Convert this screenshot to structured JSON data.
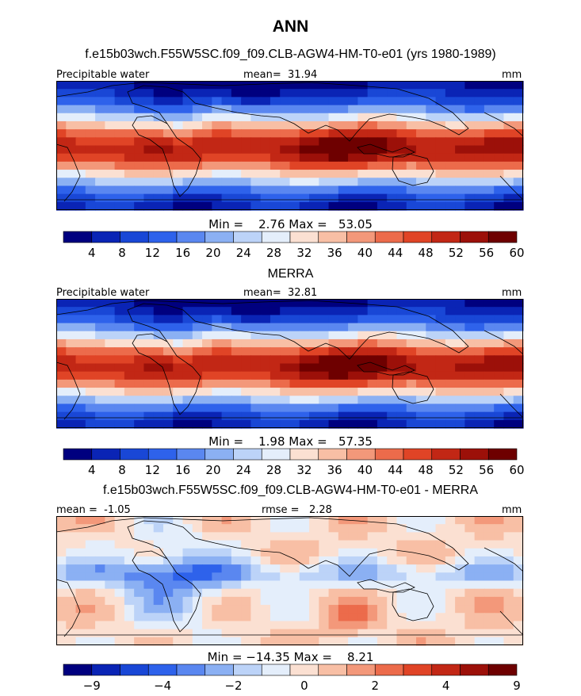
{
  "figure": {
    "title": "ANN",
    "colors": {
      "seq_palette": [
        "#00007f",
        "#0a24b5",
        "#1947d6",
        "#2e62eb",
        "#5a87f0",
        "#8bb0f3",
        "#bcd3f8",
        "#e4eefb",
        "#fbe0d2",
        "#f8bfa5",
        "#f3987a",
        "#ec6b4b",
        "#e04426",
        "#c22715",
        "#9c1009",
        "#6e0000"
      ],
      "diff_palette": [
        "#00007f",
        "#0a24b5",
        "#1947d6",
        "#2e62eb",
        "#5a87f0",
        "#8bb0f3",
        "#bcd3f8",
        "#e4eefb",
        "#fbe0d2",
        "#f8bfa5",
        "#f3987a",
        "#ec6b4b",
        "#e04426",
        "#c22715",
        "#9c1009",
        "#6e0000"
      ]
    }
  },
  "chart_data": [
    {
      "type": "heatmap",
      "title": "f.e15b03wch.F55W5SC.f09_f09.CLB-AGW4-HM-T0-e01 (yrs 1980-1989)",
      "field_label": "Precipitable water",
      "mean_label": "mean=",
      "mean_value": "31.94",
      "units": "mm",
      "min_label": "Min =",
      "min_value": "2.76",
      "max_label": "Max =",
      "max_value": "53.05",
      "colorbar_ticks": [
        "4",
        "8",
        "12",
        "16",
        "20",
        "24",
        "28",
        "32",
        "36",
        "40",
        "44",
        "48",
        "52",
        "56",
        "60"
      ],
      "field": {
        "kind": "absolute",
        "min": 2.76,
        "max": 53.05,
        "mean": 31.94
      }
    },
    {
      "type": "heatmap",
      "title": "MERRA",
      "field_label": "Precipitable water",
      "mean_label": "mean=",
      "mean_value": "32.81",
      "units": "mm",
      "min_label": "Min =",
      "min_value": "1.98",
      "max_label": "Max =",
      "max_value": "57.35",
      "colorbar_ticks": [
        "4",
        "8",
        "12",
        "16",
        "20",
        "24",
        "28",
        "32",
        "36",
        "40",
        "44",
        "48",
        "52",
        "56",
        "60"
      ],
      "field": {
        "kind": "absolute",
        "min": 1.98,
        "max": 57.35,
        "mean": 32.81
      }
    },
    {
      "type": "heatmap",
      "title": "f.e15b03wch.F55W5SC.f09_f09.CLB-AGW4-HM-T0-e01 - MERRA",
      "mean_label": "mean =",
      "mean_value": "-1.05",
      "rmse_label": "rmse =",
      "rmse_value": "2.28",
      "units": "mm",
      "min_label": "Min =",
      "min_value": "−14.35",
      "max_label": "Max =",
      "max_value": "8.21",
      "colorbar_ticks": [
        "−9",
        "",
        "−4",
        "",
        "−2",
        "",
        "0",
        "",
        "2",
        "",
        "4",
        "",
        "9"
      ],
      "field": {
        "kind": "difference",
        "min": -14.35,
        "max": 8.21,
        "mean": -1.05,
        "rmse": 2.28
      }
    }
  ]
}
